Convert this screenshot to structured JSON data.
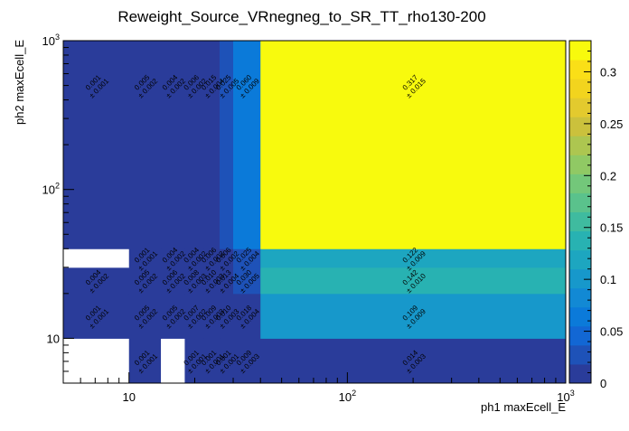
{
  "chart_data": {
    "type": "heatmap",
    "title": "Reweight_Source_VRnegneg_to_SR_TT_rho130-200",
    "xlabel": "ph1 maxEcell_E",
    "ylabel": "ph2 maxEcell_E",
    "x_scale": "log",
    "y_scale": "log",
    "xlim": [
      5,
      1000
    ],
    "ylim": [
      5,
      1000
    ],
    "x_edges": [
      5,
      10,
      14,
      18,
      22,
      26,
      30,
      40,
      1000
    ],
    "y_edges": [
      5,
      10,
      20,
      30,
      40,
      1000
    ],
    "x_tick_labels": [
      {
        "value": 10,
        "label": "10"
      },
      {
        "value": 100,
        "label": "10²"
      },
      {
        "value": 1000,
        "label": "10³"
      }
    ],
    "y_tick_labels": [
      {
        "value": 10,
        "label": "10"
      },
      {
        "value": 100,
        "label": "10²"
      },
      {
        "value": 1000,
        "label": "10³"
      }
    ],
    "zlim": [
      0,
      0.33
    ],
    "z_ticks": [
      {
        "value": 0,
        "label": "0"
      },
      {
        "value": 0.05,
        "label": "0.05"
      },
      {
        "value": 0.1,
        "label": "0.1"
      },
      {
        "value": 0.15,
        "label": "0.15"
      },
      {
        "value": 0.2,
        "label": "0.2"
      },
      {
        "value": 0.25,
        "label": "0.25"
      },
      {
        "value": 0.3,
        "label": "0.3"
      }
    ],
    "cells": [
      {
        "x0": 5,
        "x1": 10,
        "y0": 5,
        "y1": 10,
        "v": null
      },
      {
        "x0": 10,
        "x1": 14,
        "y0": 5,
        "y1": 10,
        "v": 0.001,
        "lv": "0.001",
        "le": "± 0.001"
      },
      {
        "x0": 14,
        "x1": 18,
        "y0": 5,
        "y1": 10,
        "v": null
      },
      {
        "x0": 18,
        "x1": 22,
        "y0": 5,
        "y1": 10,
        "v": 0.001,
        "lv": "0.001",
        "le": "± 0.001"
      },
      {
        "x0": 22,
        "x1": 26,
        "y0": 5,
        "y1": 10,
        "v": 0.001,
        "lv": "0.001",
        "le": "± 0.001"
      },
      {
        "x0": 26,
        "x1": 30,
        "y0": 5,
        "y1": 10,
        "v": 0.001,
        "lv": "0.001",
        "le": "± 0.001"
      },
      {
        "x0": 30,
        "x1": 40,
        "y0": 5,
        "y1": 10,
        "v": 0.009,
        "lv": "0.009",
        "le": "± 0.003"
      },
      {
        "x0": 40,
        "x1": 1000,
        "y0": 5,
        "y1": 10,
        "v": 0.014,
        "lv": "0.014",
        "le": "± 0.003"
      },
      {
        "x0": 5,
        "x1": 10,
        "y0": 10,
        "y1": 20,
        "v": 0.001,
        "lv": "0.001",
        "le": "± 0.001"
      },
      {
        "x0": 10,
        "x1": 14,
        "y0": 10,
        "y1": 20,
        "v": 0.005,
        "lv": "0.005",
        "le": "± 0.002"
      },
      {
        "x0": 14,
        "x1": 18,
        "y0": 10,
        "y1": 20,
        "v": 0.005,
        "lv": "0.005",
        "le": "± 0.002"
      },
      {
        "x0": 18,
        "x1": 22,
        "y0": 10,
        "y1": 20,
        "v": 0.007,
        "lv": "0.007",
        "le": "± 0.002"
      },
      {
        "x0": 22,
        "x1": 26,
        "y0": 10,
        "y1": 20,
        "v": 0.009,
        "lv": "0.009",
        "le": "± 0.003"
      },
      {
        "x0": 26,
        "x1": 30,
        "y0": 10,
        "y1": 20,
        "v": 0.01,
        "lv": "0.010",
        "le": "± 0.003"
      },
      {
        "x0": 30,
        "x1": 40,
        "y0": 10,
        "y1": 20,
        "v": 0.018,
        "lv": "0.018",
        "le": "± 0.004"
      },
      {
        "x0": 40,
        "x1": 1000,
        "y0": 10,
        "y1": 20,
        "v": 0.109,
        "lv": "0.109",
        "le": "± 0.009"
      },
      {
        "x0": 5,
        "x1": 10,
        "y0": 20,
        "y1": 30,
        "v": 0.004,
        "lv": "0.004",
        "le": "± 0.002"
      },
      {
        "x0": 10,
        "x1": 14,
        "y0": 20,
        "y1": 30,
        "v": 0.005,
        "lv": "0.005",
        "le": "± 0.002"
      },
      {
        "x0": 14,
        "x1": 18,
        "y0": 20,
        "y1": 30,
        "v": 0.006,
        "lv": "0.006",
        "le": "± 0.002"
      },
      {
        "x0": 18,
        "x1": 22,
        "y0": 20,
        "y1": 30,
        "v": 0.008,
        "lv": "0.008",
        "le": "± 0.003"
      },
      {
        "x0": 22,
        "x1": 26,
        "y0": 20,
        "y1": 30,
        "v": 0.01,
        "lv": "0.010",
        "le": "± 0.003"
      },
      {
        "x0": 26,
        "x1": 30,
        "y0": 20,
        "y1": 30,
        "v": 0.013,
        "lv": "0.013",
        "le": "± 0.004"
      },
      {
        "x0": 30,
        "x1": 40,
        "y0": 20,
        "y1": 30,
        "v": 0.03,
        "lv": "0.030",
        "le": "± 0.005"
      },
      {
        "x0": 40,
        "x1": 1000,
        "y0": 20,
        "y1": 30,
        "v": 0.142,
        "lv": "0.142",
        "le": "± 0.010"
      },
      {
        "x0": 5,
        "x1": 10,
        "y0": 30,
        "y1": 40,
        "v": null
      },
      {
        "x0": 10,
        "x1": 14,
        "y0": 30,
        "y1": 40,
        "v": 0.001,
        "lv": "0.001",
        "le": "± 0.001"
      },
      {
        "x0": 14,
        "x1": 18,
        "y0": 30,
        "y1": 40,
        "v": 0.004,
        "lv": "0.004",
        "le": "± 0.002"
      },
      {
        "x0": 18,
        "x1": 22,
        "y0": 30,
        "y1": 40,
        "v": 0.004,
        "lv": "0.004",
        "le": "± 0.002"
      },
      {
        "x0": 22,
        "x1": 26,
        "y0": 30,
        "y1": 40,
        "v": 0.006,
        "lv": "0.006",
        "le": "± 0.002"
      },
      {
        "x0": 26,
        "x1": 30,
        "y0": 30,
        "y1": 40,
        "v": 0.006,
        "lv": "0.006",
        "le": "± 0.002"
      },
      {
        "x0": 30,
        "x1": 40,
        "y0": 30,
        "y1": 40,
        "v": 0.025,
        "lv": "0.025",
        "le": "± 0.004"
      },
      {
        "x0": 40,
        "x1": 1000,
        "y0": 30,
        "y1": 40,
        "v": 0.122,
        "lv": "0.122",
        "le": "± 0.009"
      },
      {
        "x0": 5,
        "x1": 10,
        "y0": 40,
        "y1": 1000,
        "v": 0.001,
        "lv": "0.001",
        "le": "± 0.001"
      },
      {
        "x0": 10,
        "x1": 14,
        "y0": 40,
        "y1": 1000,
        "v": 0.005,
        "lv": "0.005",
        "le": "± 0.002"
      },
      {
        "x0": 14,
        "x1": 18,
        "y0": 40,
        "y1": 1000,
        "v": 0.004,
        "lv": "0.004",
        "le": "± 0.002"
      },
      {
        "x0": 18,
        "x1": 22,
        "y0": 40,
        "y1": 1000,
        "v": 0.006,
        "lv": "0.006",
        "le": "± 0.002"
      },
      {
        "x0": 22,
        "x1": 26,
        "y0": 40,
        "y1": 1000,
        "v": 0.015,
        "lv": "0.015",
        "le": "± 0.004"
      },
      {
        "x0": 26,
        "x1": 30,
        "y0": 40,
        "y1": 1000,
        "v": 0.025,
        "lv": "0.025",
        "le": "± 0.005"
      },
      {
        "x0": 30,
        "x1": 40,
        "y0": 40,
        "y1": 1000,
        "v": 0.06,
        "lv": "0.060",
        "le": "± 0.009"
      },
      {
        "x0": 40,
        "x1": 1000,
        "y0": 40,
        "y1": 1000,
        "v": 0.317,
        "lv": "0.317",
        "le": "± 0.015"
      }
    ],
    "palette": [
      "#2a3c9a",
      "#1e52b8",
      "#1267d4",
      "#0b7ad9",
      "#1289d4",
      "#1798cb",
      "#1da6c0",
      "#28b2b2",
      "#3fbb9f",
      "#5ac28c",
      "#73c77a",
      "#90c964",
      "#adc650",
      "#cbc13c",
      "#e3ca2e",
      "#f2d41e",
      "#fadf17",
      "#f8fa0d"
    ],
    "cell_text_color": "#000000",
    "empty_color": "#ffffff"
  }
}
